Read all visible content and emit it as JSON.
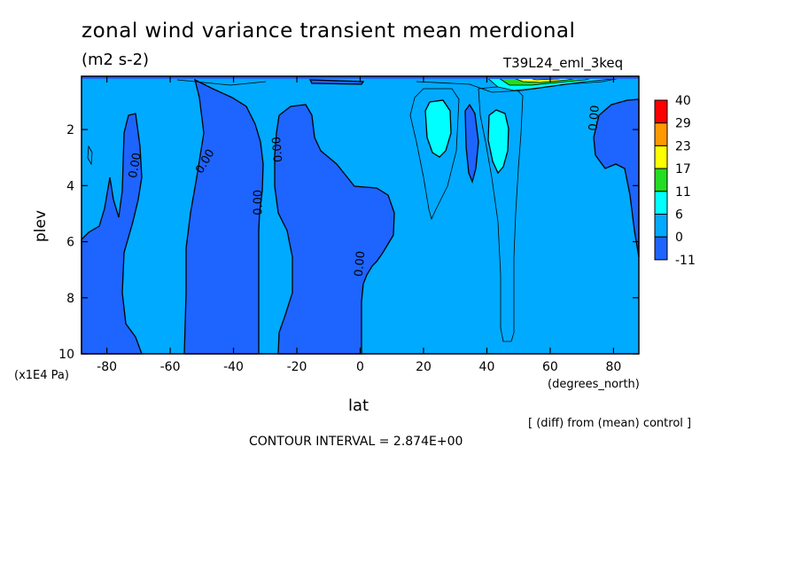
{
  "chart_data": {
    "type": "heatmap",
    "title": "zonal wind variance transient mean merdional",
    "subtitle": "(m2 s-2)",
    "run_label": "T39L24_eml_3keq",
    "xlabel": "lat",
    "xunit": "(degrees_north)",
    "ylabel": "plev",
    "yunit": "(x1E4 Pa)",
    "x_ticks": [
      "-80",
      "-60",
      "-40",
      "-20",
      "0",
      "20",
      "40",
      "60",
      "80"
    ],
    "x_tick_values": [
      -80,
      -60,
      -40,
      -20,
      0,
      20,
      40,
      60,
      80
    ],
    "y_ticks": [
      "2",
      "4",
      "6",
      "8",
      "10"
    ],
    "y_tick_values": [
      2,
      4,
      6,
      8,
      10
    ],
    "xlim": [
      -88,
      88
    ],
    "ylim": [
      10,
      0.1
    ],
    "y_inverted": true,
    "colorbar": {
      "labels": [
        "40",
        "29",
        "23",
        "17",
        "11",
        "6",
        "0",
        "-11"
      ],
      "colors": [
        "#ff0000",
        "#ff9900",
        "#ffff00",
        "#22dd22",
        "#00ffff",
        "#00aaff",
        "#1e64ff"
      ]
    },
    "contour_labels": [
      "0.00",
      "0.00",
      "0.00",
      "0.00",
      "0.00",
      "0.00",
      "0.00"
    ],
    "footer_note": "[ (diff) from (mean) control ]",
    "contour_interval": "CONTOUR INTERVAL = 2.874E+00"
  }
}
